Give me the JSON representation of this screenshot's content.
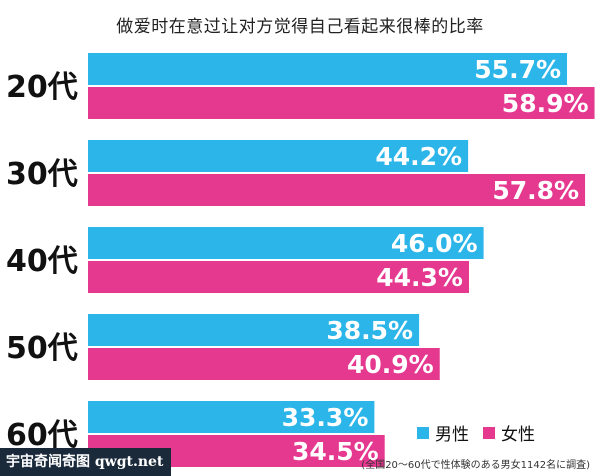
{
  "chart_data": {
    "type": "bar",
    "title": "做爱时在意过让对方觉得自己看起来很棒的比率",
    "categories": [
      "20代",
      "30代",
      "40代",
      "50代",
      "60代"
    ],
    "series": [
      {
        "name": "男性",
        "values": [
          55.7,
          44.2,
          46.0,
          38.5,
          33.3
        ],
        "labels": [
          "55.7%",
          "44.2%",
          "46.0%",
          "38.5%",
          "33.3%"
        ],
        "color": "#2BB5E8"
      },
      {
        "name": "女性",
        "values": [
          58.9,
          57.8,
          44.3,
          40.9,
          34.5
        ],
        "labels": [
          "58.9%",
          "57.8%",
          "44.3%",
          "40.9%",
          "34.5%"
        ],
        "color": "#E5388F"
      }
    ],
    "orientation": "horizontal",
    "xlim": [
      0,
      64
    ],
    "grid": false,
    "legend": "bottom-right"
  },
  "note": "(全国20～60代で性体験のある男女1142名に調査)",
  "watermark": "宇宙奇闻奇图 qwgt.net"
}
